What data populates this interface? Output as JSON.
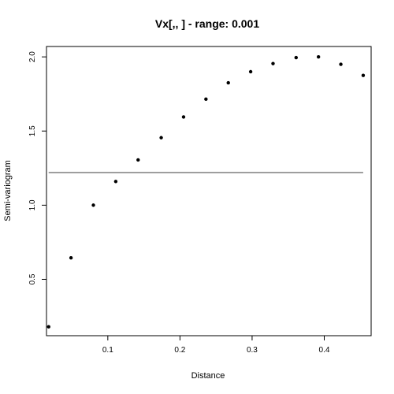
{
  "chart_data": {
    "type": "scatter",
    "title": "Vx[,,   ] - range: 0.001",
    "xlabel": "Distance",
    "ylabel": "Semi-variogram",
    "xlim": [
      0.015,
      0.465
    ],
    "ylim": [
      0.12,
      2.07
    ],
    "x_ticks": [
      0.1,
      0.2,
      0.3,
      0.4
    ],
    "x_tick_labels": [
      "0.1",
      "0.2",
      "0.3",
      "0.4"
    ],
    "y_ticks": [
      0.5,
      1.0,
      1.5,
      2.0
    ],
    "y_tick_labels": [
      "0.5",
      "1.0",
      "1.5",
      "2.0"
    ],
    "grid": false,
    "points": [
      {
        "x": 0.018,
        "y": 0.18
      },
      {
        "x": 0.049,
        "y": 0.645
      },
      {
        "x": 0.08,
        "y": 1.0
      },
      {
        "x": 0.111,
        "y": 1.16
      },
      {
        "x": 0.142,
        "y": 1.305
      },
      {
        "x": 0.174,
        "y": 1.455
      },
      {
        "x": 0.205,
        "y": 1.595
      },
      {
        "x": 0.236,
        "y": 1.715
      },
      {
        "x": 0.267,
        "y": 1.825
      },
      {
        "x": 0.298,
        "y": 1.9
      },
      {
        "x": 0.329,
        "y": 1.955
      },
      {
        "x": 0.361,
        "y": 1.995
      },
      {
        "x": 0.392,
        "y": 2.0
      },
      {
        "x": 0.423,
        "y": 1.95
      },
      {
        "x": 0.454,
        "y": 1.875
      }
    ],
    "reference_line": {
      "y": 1.22,
      "x_range": [
        0.018,
        0.454
      ],
      "color": "#7f7f7f"
    },
    "point_color": "#000000"
  }
}
